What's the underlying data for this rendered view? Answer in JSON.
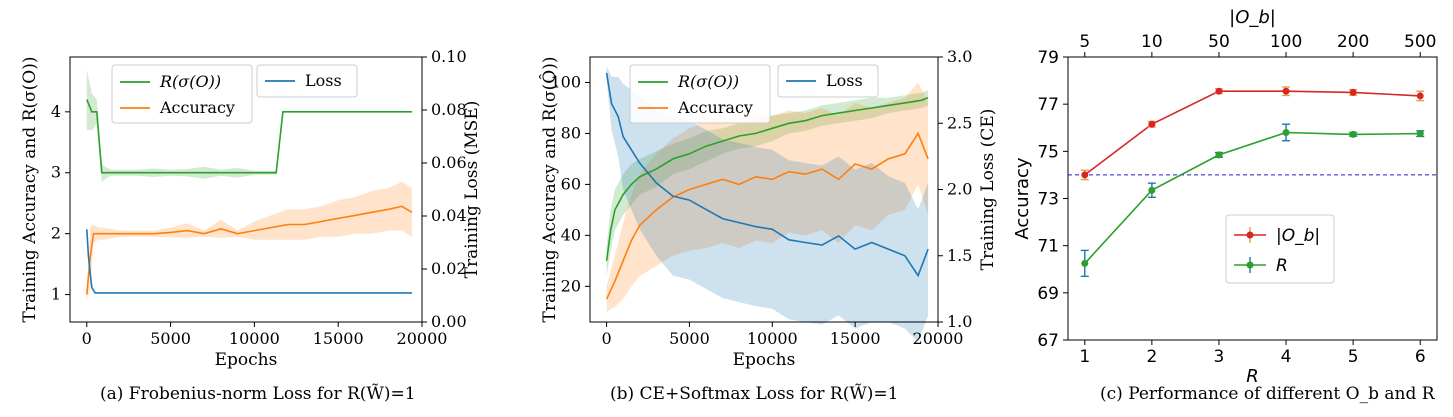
{
  "colors": {
    "green": "#2ca02c",
    "orange": "#ff7f0e",
    "blue": "#1f77b4",
    "red": "#d62728",
    "errorbar_orange": "#e8a23c",
    "errorbar_blue": "#1f77b4",
    "baseline": "#1f1fcf"
  },
  "captions": {
    "a": "(a) Frobenius-norm Loss for R(W̃)=1",
    "b": "(b) CE+Softmax Loss for R(W̃)=1",
    "c": "(c) Performance of different O_b and R"
  },
  "chart_data": [
    {
      "id": "a",
      "type": "line",
      "xlabel": "Epochs",
      "ylabel_left": "Training Accuracy and R(σ(O))",
      "ylabel_right": "Training Loss (MSE)",
      "xlim": [
        -1000,
        20000
      ],
      "ylim_left": [
        0.55,
        4.9
      ],
      "ylim_right": [
        0.0,
        0.1
      ],
      "xticks": [
        0,
        5000,
        10000,
        15000,
        20000
      ],
      "xtick_labels": [
        "0",
        "5000",
        "10000",
        "15000",
        "20000"
      ],
      "yticks_left": [
        1,
        2,
        3,
        4
      ],
      "ytick_labels_left": [
        "1",
        "2",
        "3",
        "4"
      ],
      "yticks_right": [
        0.0,
        0.02,
        0.04,
        0.06,
        0.08,
        0.1
      ],
      "ytick_labels_right": [
        "0.00",
        "0.02",
        "0.04",
        "0.06",
        "0.08",
        "0.10"
      ],
      "legend": [
        {
          "label": "R(σ(O))",
          "series": "R"
        },
        {
          "label": "Accuracy",
          "series": "Accuracy"
        },
        {
          "label": "Loss",
          "series": "Loss"
        }
      ],
      "series": [
        {
          "name": "R(σ(O))",
          "axis": "left",
          "color": "#2ca02c",
          "x": [
            0,
            300,
            600,
            900,
            1200,
            1500,
            2000,
            3000,
            4000,
            5000,
            6000,
            7000,
            8000,
            9000,
            10000,
            11000,
            11300,
            11700,
            12000,
            13000,
            14000,
            15000,
            16000,
            17000,
            18000,
            19000,
            19400
          ],
          "y": [
            4.2,
            4.0,
            4.0,
            3.0,
            3.0,
            3.0,
            3.0,
            3.0,
            3.0,
            3.0,
            3.0,
            3.0,
            3.0,
            3.0,
            3.0,
            3.0,
            3.0,
            4.0,
            4.0,
            4.0,
            4.0,
            4.0,
            4.0,
            4.0,
            4.0,
            4.0,
            4.0
          ],
          "band": [
            0.5,
            0.3,
            0.2,
            0.15,
            0.08,
            0.05,
            0.05,
            0.05,
            0.07,
            0.05,
            0.06,
            0.1,
            0.05,
            0.08,
            0.03,
            0.03,
            0.03,
            0.02,
            0.0,
            0.0,
            0.0,
            0.0,
            0.0,
            0.0,
            0.0,
            0.0,
            0.0
          ]
        },
        {
          "name": "Accuracy",
          "axis": "left",
          "color": "#ff7f0e",
          "x": [
            0,
            200,
            400,
            700,
            1000,
            2000,
            3000,
            4000,
            5000,
            6000,
            7000,
            8000,
            9000,
            10000,
            11000,
            12000,
            13000,
            14000,
            15000,
            16000,
            17000,
            18000,
            18800,
            19400
          ],
          "y": [
            1.0,
            1.6,
            2.0,
            2.0,
            2.0,
            2.0,
            2.0,
            2.0,
            2.02,
            2.05,
            2.0,
            2.08,
            2.0,
            2.05,
            2.1,
            2.15,
            2.15,
            2.2,
            2.25,
            2.3,
            2.35,
            2.4,
            2.45,
            2.35
          ],
          "band": [
            0.1,
            0.5,
            0.15,
            0.1,
            0.1,
            0.05,
            0.05,
            0.05,
            0.08,
            0.12,
            0.05,
            0.15,
            0.05,
            0.15,
            0.2,
            0.25,
            0.25,
            0.25,
            0.3,
            0.3,
            0.35,
            0.35,
            0.4,
            0.4
          ]
        },
        {
          "name": "Loss",
          "axis": "right",
          "color": "#1f77b4",
          "x": [
            0,
            100,
            300,
            500,
            1000,
            3000,
            6000,
            10000,
            15000,
            19400
          ],
          "y": [
            0.035,
            0.025,
            0.013,
            0.011,
            0.011,
            0.011,
            0.011,
            0.011,
            0.011,
            0.011
          ],
          "band": [
            0.0,
            0.0,
            0.0,
            0.0,
            0.0,
            0.0,
            0.0,
            0.0,
            0.0,
            0.0
          ]
        }
      ]
    },
    {
      "id": "b",
      "type": "line",
      "xlabel": "Epochs",
      "ylabel_left": "Training Accuracy and R(σ(Ô))",
      "ylabel_right": "Training Loss (CE)",
      "xlim": [
        -1000,
        20000
      ],
      "ylim_left": [
        6,
        110
      ],
      "ylim_right": [
        1.0,
        3.0
      ],
      "xticks": [
        0,
        5000,
        10000,
        15000,
        20000
      ],
      "xtick_labels": [
        "0",
        "5000",
        "10000",
        "15000",
        "20000"
      ],
      "yticks_left": [
        20,
        40,
        60,
        80,
        100
      ],
      "ytick_labels_left": [
        "20",
        "40",
        "60",
        "80",
        "100"
      ],
      "yticks_right": [
        1.0,
        1.5,
        2.0,
        2.5,
        3.0
      ],
      "ytick_labels_right": [
        "1.0",
        "1.5",
        "2.0",
        "2.5",
        "3.0"
      ],
      "legend": [
        {
          "label": "R(σ(O))",
          "series": "R"
        },
        {
          "label": "Accuracy",
          "series": "Accuracy"
        },
        {
          "label": "Loss",
          "series": "Loss"
        }
      ],
      "series": [
        {
          "name": "R(σ(O))",
          "axis": "left",
          "color": "#2ca02c",
          "x": [
            0,
            250,
            500,
            1000,
            1500,
            2000,
            3000,
            4000,
            5000,
            6000,
            7000,
            8000,
            9000,
            10000,
            11000,
            12000,
            13000,
            14000,
            15000,
            16000,
            17000,
            18000,
            19000,
            19400
          ],
          "y": [
            30,
            42,
            50,
            56,
            60,
            63,
            66,
            70,
            72,
            75,
            77,
            79,
            80,
            82,
            84,
            85,
            87,
            88,
            89,
            90,
            91,
            92,
            93,
            94
          ],
          "band": [
            6,
            8,
            8,
            8,
            8,
            7,
            7,
            6,
            6,
            6,
            5,
            5,
            5,
            5,
            4,
            4,
            4,
            4,
            4,
            4,
            3,
            3,
            3,
            3
          ]
        },
        {
          "name": "Accuracy",
          "axis": "left",
          "color": "#ff7f0e",
          "x": [
            0,
            500,
            1000,
            1500,
            2000,
            3000,
            4000,
            5000,
            6000,
            7000,
            8000,
            9000,
            10000,
            11000,
            12000,
            13000,
            14000,
            15000,
            16000,
            17000,
            18000,
            18800,
            19400
          ],
          "y": [
            15,
            22,
            30,
            38,
            44,
            50,
            55,
            58,
            60,
            62,
            60,
            63,
            62,
            65,
            64,
            66,
            62,
            68,
            66,
            70,
            72,
            80,
            70
          ],
          "band": [
            5,
            10,
            15,
            18,
            20,
            22,
            23,
            24,
            25,
            25,
            25,
            25,
            25,
            24,
            24,
            24,
            25,
            24,
            24,
            22,
            22,
            20,
            22
          ]
        },
        {
          "name": "Loss",
          "axis": "right",
          "color": "#1f77b4",
          "x": [
            0,
            300,
            700,
            1000,
            1500,
            2000,
            3000,
            4000,
            5000,
            6000,
            7000,
            8000,
            9000,
            10000,
            11000,
            12000,
            13000,
            14000,
            15000,
            16000,
            17000,
            18000,
            18800,
            19400
          ],
          "y": [
            2.88,
            2.65,
            2.55,
            2.4,
            2.3,
            2.2,
            2.05,
            1.95,
            1.92,
            1.85,
            1.78,
            1.75,
            1.72,
            1.7,
            1.62,
            1.6,
            1.58,
            1.65,
            1.55,
            1.6,
            1.55,
            1.5,
            1.35,
            1.55
          ],
          "band": [
            0.05,
            0.2,
            0.3,
            0.4,
            0.45,
            0.5,
            0.55,
            0.6,
            0.6,
            0.6,
            0.6,
            0.6,
            0.6,
            0.6,
            0.6,
            0.6,
            0.6,
            0.6,
            0.6,
            0.6,
            0.55,
            0.55,
            0.5,
            0.5
          ]
        }
      ]
    },
    {
      "id": "c",
      "type": "line",
      "xlabel": "R",
      "xlabel_top": "|O_b|",
      "ylabel": "Accuracy",
      "xlim": [
        0.75,
        6.25
      ],
      "ylim": [
        67,
        79
      ],
      "xticks": [
        1,
        2,
        3,
        4,
        5,
        6
      ],
      "xtick_labels": [
        "1",
        "2",
        "3",
        "4",
        "5",
        "6"
      ],
      "xtick_labels_top": [
        "5",
        "10",
        "50",
        "100",
        "200",
        "500"
      ],
      "yticks": [
        67,
        69,
        71,
        73,
        75,
        77,
        79
      ],
      "ytick_labels": [
        "67",
        "69",
        "71",
        "73",
        "75",
        "77",
        "79"
      ],
      "baseline": 74.0,
      "legend": [
        {
          "label": "|O_b|",
          "series": "|O_b|"
        },
        {
          "label": "R",
          "series": "R"
        }
      ],
      "series": [
        {
          "name": "|O_b|",
          "color": "#d62728",
          "errcolor": "#e8a23c",
          "x": [
            1,
            2,
            3,
            4,
            5,
            6
          ],
          "y": [
            74.0,
            76.15,
            77.55,
            77.55,
            77.5,
            77.35
          ],
          "err": [
            0.2,
            0.12,
            0.1,
            0.18,
            0.12,
            0.2
          ]
        },
        {
          "name": "R",
          "color": "#2ca02c",
          "errcolor": "#1f77b4",
          "x": [
            1,
            2,
            3,
            4,
            5,
            6
          ],
          "y": [
            70.25,
            73.35,
            74.85,
            75.8,
            75.72,
            75.75
          ],
          "err": [
            0.55,
            0.3,
            0.1,
            0.35,
            0.08,
            0.12
          ]
        }
      ]
    }
  ]
}
